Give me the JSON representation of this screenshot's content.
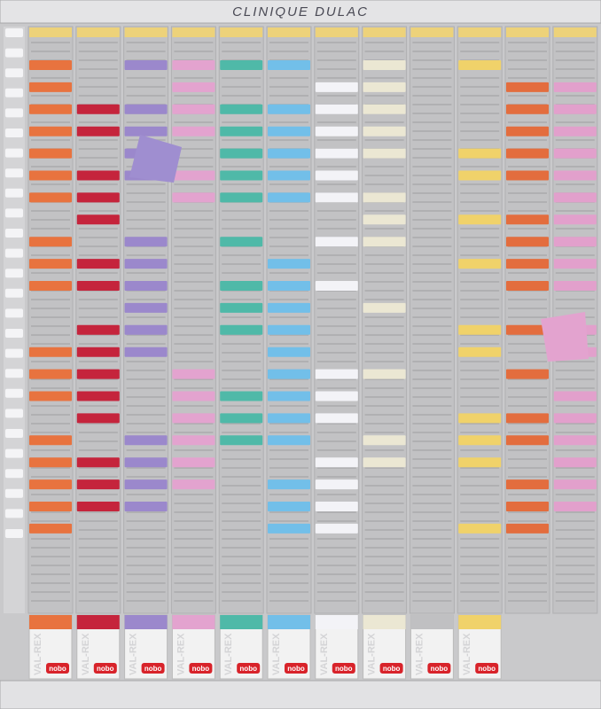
{
  "header": {
    "title": "CLINIQUE DULAC"
  },
  "boxes": [
    {
      "label": "VAL-REX",
      "brand": "nobo"
    },
    {
      "label": "VAL-REX",
      "brand": "nobo"
    },
    {
      "label": "VAL-REX",
      "brand": "nobo"
    },
    {
      "label": "VAL-REX",
      "brand": "nobo"
    },
    {
      "label": "VAL-REX",
      "brand": "nobo"
    },
    {
      "label": "VAL-REX",
      "brand": "nobo"
    },
    {
      "label": "VAL-REX",
      "brand": "nobo"
    },
    {
      "label": "VAL-REX",
      "brand": "nobo"
    },
    {
      "label": "VAL-REX",
      "brand": "nobo"
    },
    {
      "label": "VAL-REX",
      "brand": "nobo"
    }
  ]
}
